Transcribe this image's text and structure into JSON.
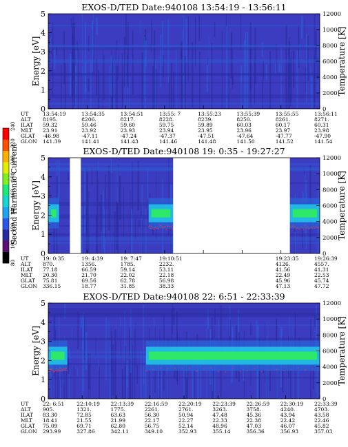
{
  "colors": {
    "spectrogram_background": "#3c3cc0",
    "spectrogram_dark": "#28289a",
    "spectrogram_mid": "#2a62d8",
    "spectrogram_cyan": "#20c8e8",
    "spectrogram_green": "#2ee86a",
    "spectrogram_line": "#ff3030",
    "colorbar": [
      "#000000",
      "#5a1070",
      "#2a2aa0",
      "#2f55e6",
      "#1fa2f0",
      "#15d6d0",
      "#1ee878",
      "#7ef020",
      "#e2f000",
      "#ffb000",
      "#ff5000",
      "#ff0000"
    ]
  },
  "colorbar": {
    "label": "Second Harmonic Current",
    "ticks": [
      "80",
      "100",
      "120",
      "140",
      "160",
      "180",
      "200",
      "220",
      "240"
    ]
  },
  "chart_data": [
    {
      "type": "heatmap",
      "title": "EXOS-D/TED   Date:940108  13:54:19 - 13:56:11",
      "ylabel": "Energy [eV]",
      "ylabel_right": "Temperature [K]",
      "ylim": [
        0,
        5
      ],
      "ylim_right": [
        0,
        12000
      ],
      "yticks": [
        "0",
        "1",
        "2",
        "3",
        "4",
        "5"
      ],
      "yticks_right": [
        "0",
        "2000",
        "4000",
        "6000",
        "8000",
        "10000",
        "12000"
      ],
      "data_gaps": [],
      "bright_band": null,
      "ephemeris": {
        "row_labels": [
          "UT",
          "ALT",
          "ILAT",
          "MLT",
          "GLAT",
          "GLON"
        ],
        "columns": [
          [
            "13:54:19",
            "8195.",
            "59.32",
            "23.91",
            "-46.98",
            "141.39"
          ],
          [
            "13:54:35",
            "8206.",
            "59.46",
            "23.92",
            "-47.11",
            "141.41"
          ],
          [
            "13:54:51",
            "8217.",
            "59.60",
            "23.93",
            "-47.24",
            "141.43"
          ],
          [
            "13:55: 7",
            "8228.",
            "59.75",
            "23.94",
            "-47.37",
            "141.46"
          ],
          [
            "13:55:23",
            "8239.",
            "59.89",
            "23.95",
            "-47.51",
            "141.48"
          ],
          [
            "13:55:39",
            "8250.",
            "60.03",
            "23.96",
            "-47.64",
            "141.50"
          ],
          [
            "13:55:55",
            "8261.",
            "60.17",
            "23.97",
            "-47.77",
            "141.52"
          ],
          [
            "13:56:11",
            "8271.",
            "60.31",
            "23.98",
            "-47.90",
            "141.54"
          ]
        ]
      }
    },
    {
      "type": "heatmap",
      "title": "EXOS-D/TED   Date:940108  19: 0:35 - 19:27:27",
      "ylabel": "Energy [eV]",
      "ylabel_right": "Temperature [K]",
      "ylim": [
        0,
        5
      ],
      "ylim_right": [
        0,
        12000
      ],
      "yticks": [
        "0",
        "1",
        "2",
        "3",
        "4",
        "5"
      ],
      "yticks_right": [
        "0",
        "2000",
        "4000",
        "6000",
        "8000",
        "10000",
        "12000"
      ],
      "data_gaps": [
        [
          0.08,
          0.12
        ],
        [
          0.46,
          0.89
        ]
      ],
      "bright_band": {
        "energy_ev": 2.1,
        "segments": [
          [
            0.37,
            0.46
          ],
          [
            0.89,
            1.0
          ]
        ],
        "early_segment": [
          0.0,
          0.04
        ]
      },
      "ephemeris": {
        "row_labels": [
          "UT",
          "ALT",
          "ILAT",
          "MLT",
          "GLAT",
          "GLON"
        ],
        "columns": [
          [
            "19: 0:35",
            "870.",
            "77.18",
            "20.30",
            "75.81",
            "336.15"
          ],
          [
            "19: 4:39",
            "1356.",
            "66.59",
            "21.70",
            "69.56",
            "18.77"
          ],
          [
            "19: 7:47",
            "1785.",
            "59.14",
            "22.02",
            "62.78",
            "31.85"
          ],
          [
            "19:10:51",
            "2232.",
            "53.11",
            "22.18",
            "56.98",
            "38.33"
          ],
          [
            "",
            "",
            "",
            "",
            "",
            ""
          ],
          [
            "",
            "",
            "",
            "",
            "",
            ""
          ],
          [
            "19:23:35",
            "4126.",
            "41.56",
            "22.49",
            "45.96",
            "47.13"
          ],
          [
            "19:26:39",
            "4557.",
            "41.31",
            "22.53",
            "45.74",
            "47.72"
          ]
        ]
      }
    },
    {
      "type": "heatmap",
      "title": "EXOS-D/TED   Date:940108  22: 6:51 - 22:33:39",
      "ylabel": "Energy [eV]",
      "ylabel_right": "Temperature [K]",
      "ylim": [
        0,
        5
      ],
      "ylim_right": [
        0,
        12000
      ],
      "yticks": [
        "0",
        "1",
        "2",
        "3",
        "4",
        "5"
      ],
      "yticks_right": [
        "0",
        "2000",
        "4000",
        "6000",
        "8000",
        "10000",
        "12000"
      ],
      "data_gaps": [],
      "bright_band": {
        "energy_ev": 2.25,
        "segments": [
          [
            0.0,
            0.07
          ],
          [
            0.36,
            1.0
          ]
        ]
      },
      "ephemeris": {
        "row_labels": [
          "UT",
          "ALT",
          "ILAT",
          "MLT",
          "GLAT",
          "GLON"
        ],
        "columns": [
          [
            "22: 6:51",
            "905.",
            "83.30",
            "18.41",
            "75.09",
            "293.99"
          ],
          [
            "22:10:19",
            "1321.",
            "72.85",
            "21.55",
            "69.71",
            "327.86"
          ],
          [
            "22:13:39",
            "1775.",
            "63.63",
            "21.99",
            "62.80",
            "342.11"
          ],
          [
            "22:16:59",
            "2261.",
            "56.30",
            "22.17",
            "56.75",
            "349.10"
          ],
          [
            "22:20:19",
            "2761.",
            "50.94",
            "22.27",
            "52.14",
            "352.93"
          ],
          [
            "22:23:39",
            "3263.",
            "47.48",
            "22.33",
            "48.96",
            "355.14"
          ],
          [
            "22:26:59",
            "3758.",
            "45.36",
            "22.38",
            "47.03",
            "356.36"
          ],
          [
            "22:30:19",
            "4240.",
            "43.94",
            "22.42",
            "46.07",
            "356.93"
          ],
          [
            "22:33:39",
            "4703.",
            "43.58",
            "22.46",
            "45.82",
            "357.03"
          ]
        ]
      }
    }
  ]
}
